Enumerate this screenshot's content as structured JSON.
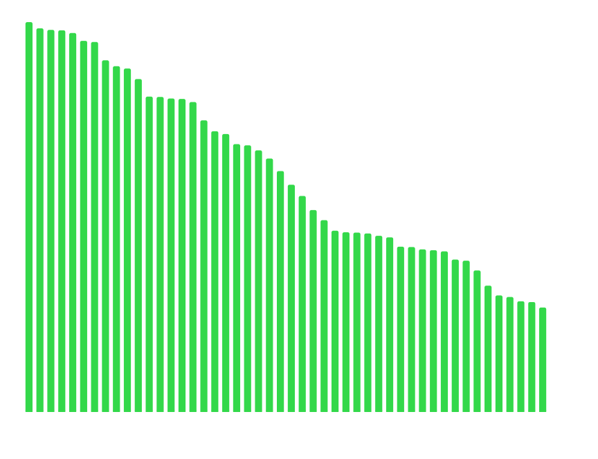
{
  "chart_data": {
    "type": "bar",
    "title": "",
    "xlabel": "",
    "ylabel": "",
    "grid": false,
    "legend": false,
    "bar_color": "#33d84a",
    "background": "#ffffff",
    "ylim": [
      0,
      100
    ],
    "values": [
      100,
      98.4,
      98.0,
      97.9,
      97.2,
      95.2,
      94.9,
      90.2,
      88.7,
      88.1,
      85.4,
      80.9,
      80.8,
      80.4,
      80.3,
      79.5,
      74.8,
      72.0,
      71.3,
      68.7,
      68.4,
      67.1,
      65.0,
      61.8,
      58.3,
      55.4,
      51.8,
      49.2,
      46.5,
      46.1,
      46.0,
      45.8,
      45.2,
      44.8,
      42.4,
      42.3,
      41.7,
      41.5,
      41.2,
      39.1,
      38.8,
      36.3,
      32.4,
      29.9,
      29.5,
      28.4,
      28.2,
      26.8
    ]
  }
}
